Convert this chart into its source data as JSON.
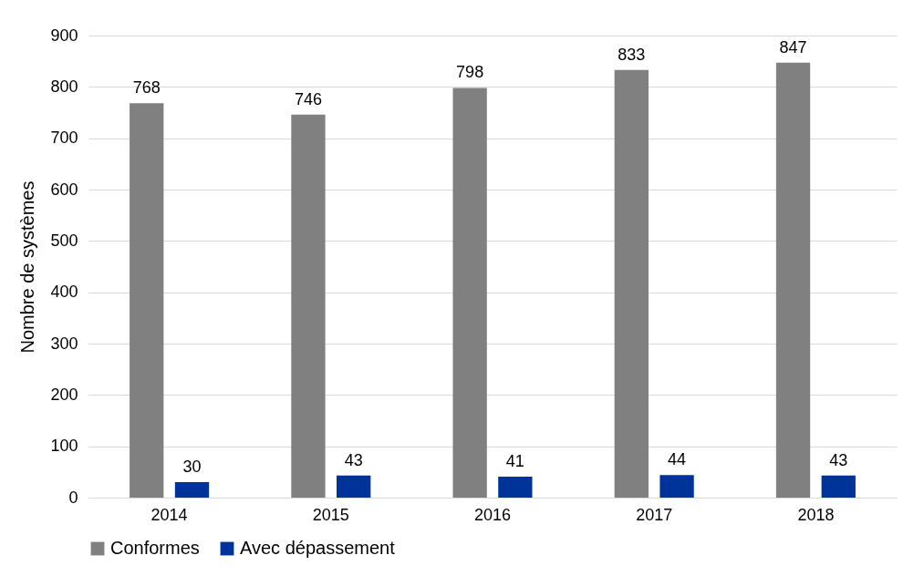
{
  "chart_data": {
    "type": "bar",
    "ylabel": "Nombre de systèmes",
    "categories": [
      "2014",
      "2015",
      "2016",
      "2017",
      "2018"
    ],
    "series": [
      {
        "name": "Conformes",
        "color": "#808080",
        "values": [
          768,
          746,
          798,
          833,
          847
        ]
      },
      {
        "name": "Avec dépassement",
        "color": "#003399",
        "values": [
          30,
          43,
          41,
          44,
          43
        ]
      }
    ],
    "ylim": [
      0,
      900
    ],
    "yticks": [
      0,
      100,
      200,
      300,
      400,
      500,
      600,
      700,
      800,
      900
    ],
    "grid": "y",
    "legend": "bottom",
    "data_labels": true
  }
}
